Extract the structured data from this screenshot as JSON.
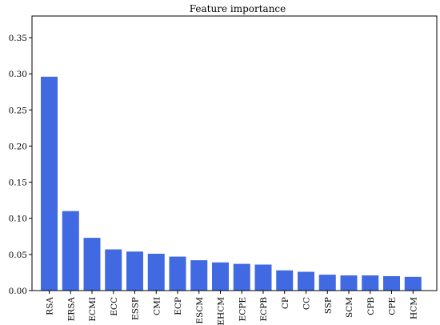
{
  "chart_data": {
    "type": "bar",
    "title": "Feature importance",
    "xlabel": "",
    "ylabel": "",
    "ylim": [
      0,
      0.38
    ],
    "yticks": [
      0.0,
      0.05,
      0.1,
      0.15,
      0.2,
      0.25,
      0.3,
      0.35
    ],
    "ytick_labels": [
      "0.00",
      "0.05",
      "0.10",
      "0.15",
      "0.20",
      "0.25",
      "0.30",
      "0.35"
    ],
    "categories": [
      "RSA",
      "ERSA",
      "ECMI",
      "ECC",
      "ESSP",
      "CMI",
      "ECP",
      "ESCM",
      "EHCM",
      "ECPE",
      "ECPB",
      "CP",
      "CC",
      "SSP",
      "SCM",
      "CPB",
      "CPE",
      "HCM"
    ],
    "values": [
      0.296,
      0.11,
      0.073,
      0.057,
      0.054,
      0.051,
      0.047,
      0.042,
      0.039,
      0.037,
      0.036,
      0.028,
      0.026,
      0.022,
      0.021,
      0.021,
      0.02,
      0.019
    ],
    "bar_color": "#4169e1",
    "grid": false,
    "legend": "none"
  }
}
